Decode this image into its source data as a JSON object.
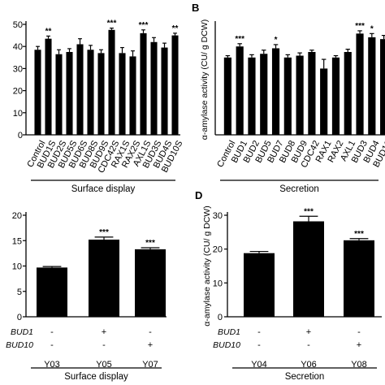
{
  "chart_data": [
    {
      "panel": "",
      "type": "bar",
      "ylim": [
        0,
        50
      ],
      "yticks": [
        0,
        10,
        20,
        30,
        40,
        50
      ],
      "ylabel": "",
      "xlabel": "Surface display",
      "categories": [
        "Control",
        "BUD1S",
        "BUD2S",
        "BUD5S",
        "BUD6S",
        "BUD8S",
        "BUD9S",
        "CDC42S",
        "RAX1S",
        "RAX2S",
        "AXL1S",
        "BUD3S",
        "BUD4S",
        "BUD10S"
      ],
      "values": [
        38.5,
        43.5,
        36.5,
        37.5,
        41,
        38.5,
        37,
        47.5,
        37,
        35.5,
        46,
        42,
        39.5,
        45
      ],
      "errors": [
        1.5,
        1.2,
        2,
        1.5,
        2.5,
        2,
        1.5,
        0.8,
        2.5,
        2.5,
        1.5,
        2,
        2,
        1
      ],
      "significance": [
        "",
        "**",
        "",
        "",
        "",
        "",
        "",
        "***",
        "",
        "",
        "***",
        "",
        "",
        "**"
      ]
    },
    {
      "panel": "B",
      "type": "bar",
      "ylim": [
        0,
        60
      ],
      "yticks": [],
      "ylabel": "α-amylase activity (CU/ g DCW)",
      "xlabel": "Secretion",
      "categories": [
        "Control",
        "BUD1",
        "BUD2",
        "BUD5",
        "BUD7",
        "BUD8",
        "BUD9",
        "CDC42",
        "RAX1",
        "RAX2",
        "AXL1",
        "BUD3",
        "BUD4",
        "BUD10"
      ],
      "values": [
        42,
        48,
        42,
        44,
        47,
        42,
        43,
        45,
        36,
        42,
        45,
        55,
        53,
        52
      ],
      "errors": [
        1,
        1.5,
        1.5,
        2,
        2,
        1.5,
        1.5,
        1,
        5,
        1,
        1.5,
        1.5,
        2,
        2
      ],
      "significance": [
        "",
        "***",
        "",
        "",
        "*",
        "",
        "",
        "",
        "",
        "",
        "",
        "***",
        "*",
        ""
      ]
    },
    {
      "panel": "",
      "type": "bar",
      "ylim": [
        0,
        20
      ],
      "yticks": [
        0,
        5,
        10,
        15,
        20
      ],
      "ylabel": "",
      "xlabel": "Surface display",
      "categories": [
        "Y03",
        "Y05",
        "Y07"
      ],
      "values": [
        9.7,
        15.2,
        13.3
      ],
      "errors": [
        0.2,
        0.5,
        0.3
      ],
      "significance": [
        "",
        "***",
        "***"
      ],
      "genotype_rows": [
        {
          "label": "BUD1",
          "marks": [
            "-",
            "+",
            "-"
          ]
        },
        {
          "label": "BUD10",
          "marks": [
            "-",
            "-",
            "+"
          ]
        }
      ]
    },
    {
      "panel": "D",
      "type": "bar",
      "ylim": [
        0,
        30
      ],
      "yticks": [
        0,
        10,
        20,
        30
      ],
      "ylabel": "α-amylase activity (CU/ g DCW)",
      "xlabel": "Secretion",
      "categories": [
        "Y04",
        "Y06",
        "Y08"
      ],
      "values": [
        18.8,
        28.2,
        22.6
      ],
      "errors": [
        0.5,
        1.5,
        0.5
      ],
      "significance": [
        "",
        "***",
        "***"
      ],
      "genotype_rows": [
        {
          "label": "BUD1",
          "marks": [
            "-",
            "+",
            "-"
          ]
        },
        {
          "label": "BUD10",
          "marks": [
            "-",
            "-",
            "+"
          ]
        }
      ]
    }
  ]
}
